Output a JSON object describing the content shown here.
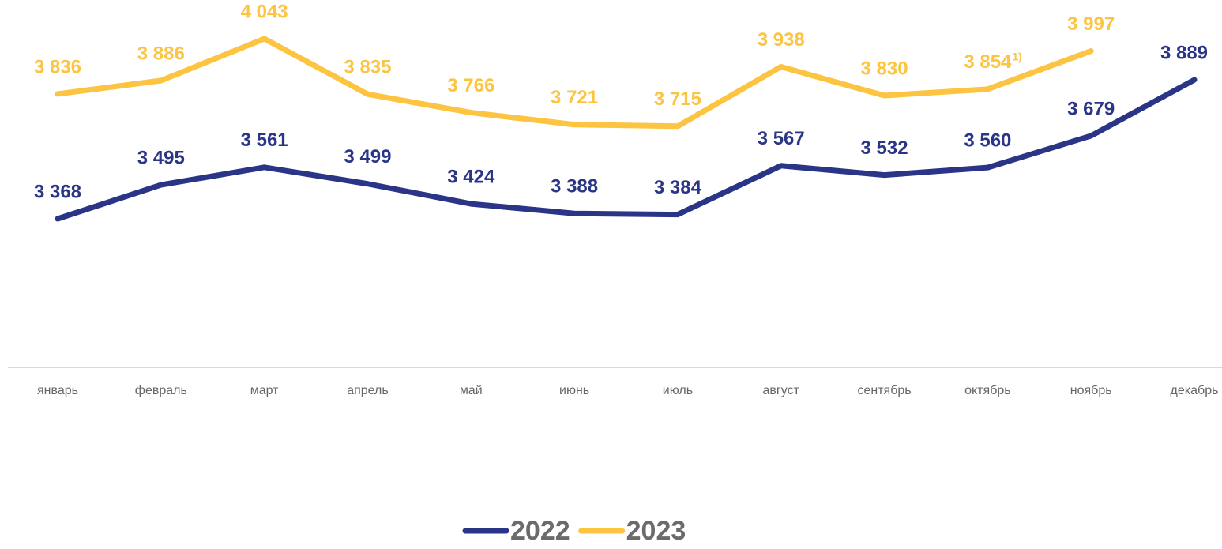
{
  "chart_data": {
    "type": "line",
    "categories": [
      "январь",
      "февраль",
      "март",
      "апрель",
      "май",
      "июнь",
      "июль",
      "август",
      "сентябрь",
      "октябрь",
      "ноябрь",
      "декабрь"
    ],
    "series": [
      {
        "name": "2022",
        "color": "#2b3587",
        "values": [
          3368,
          3495,
          3561,
          3499,
          3424,
          3388,
          3384,
          3567,
          3532,
          3560,
          3679,
          3889
        ],
        "value_labels": [
          "3 368",
          "3 495",
          "3 561",
          "3 499",
          "3 424",
          "3 388",
          "3 384",
          "3 567",
          "3 532",
          "3 560",
          "3 679",
          "3 889"
        ]
      },
      {
        "name": "2023",
        "color": "#fcc440",
        "values": [
          3836,
          3886,
          4043,
          3835,
          3766,
          3721,
          3715,
          3938,
          3830,
          3854,
          3997,
          null
        ],
        "value_labels": [
          "3 836",
          "3 886",
          "4 043",
          "3 835",
          "3 766",
          "3 721",
          "3 715",
          "3 938",
          "3 830",
          "3 854",
          "3 997",
          null
        ]
      }
    ],
    "annotations": [
      {
        "text": "1)",
        "series": "2023",
        "category": "октябрь"
      }
    ],
    "legend": "bottom"
  }
}
